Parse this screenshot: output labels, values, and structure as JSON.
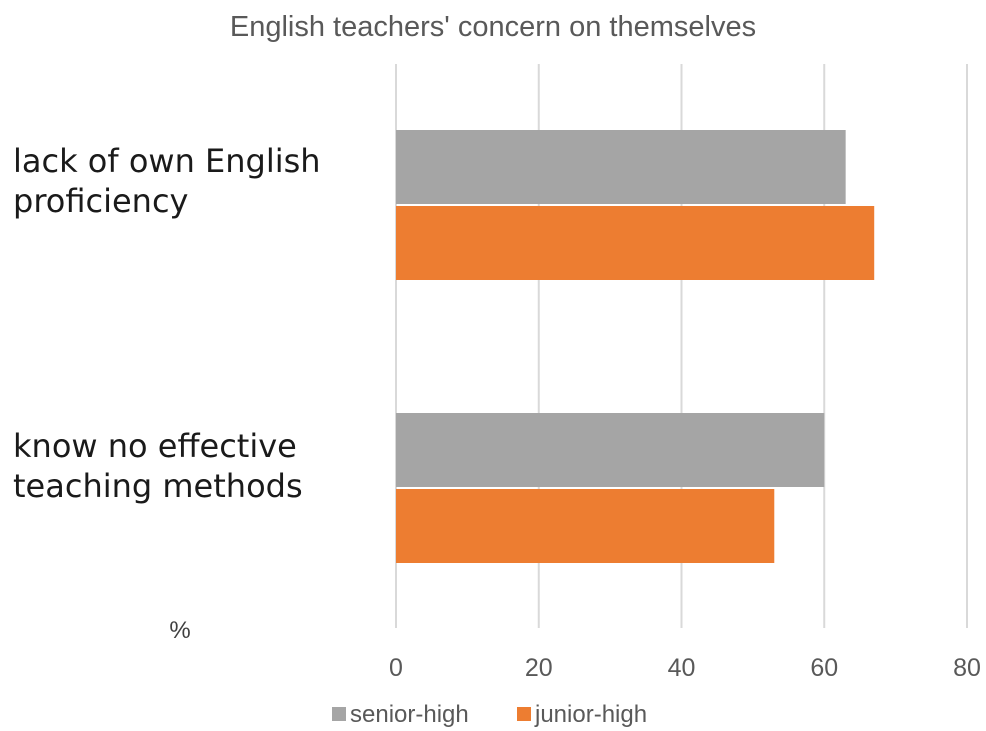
{
  "chart_data": {
    "type": "bar",
    "orientation": "horizontal",
    "title": "English teachers' concern  on themselves",
    "categories": [
      [
        "lack of own English",
        "proficiency"
      ],
      [
        "know no effective",
        "teaching methods"
      ]
    ],
    "series": [
      {
        "name": "senior-high",
        "color": "#a5a5a5",
        "values": [
          63,
          60
        ]
      },
      {
        "name": "junior-high",
        "color": "#ed7d31",
        "values": [
          67,
          53
        ]
      }
    ],
    "xlim": [
      0,
      80
    ],
    "xticks": [
      0,
      20,
      40,
      60,
      80
    ],
    "unit_label": "%",
    "grid": true,
    "legend_position": "bottom"
  }
}
